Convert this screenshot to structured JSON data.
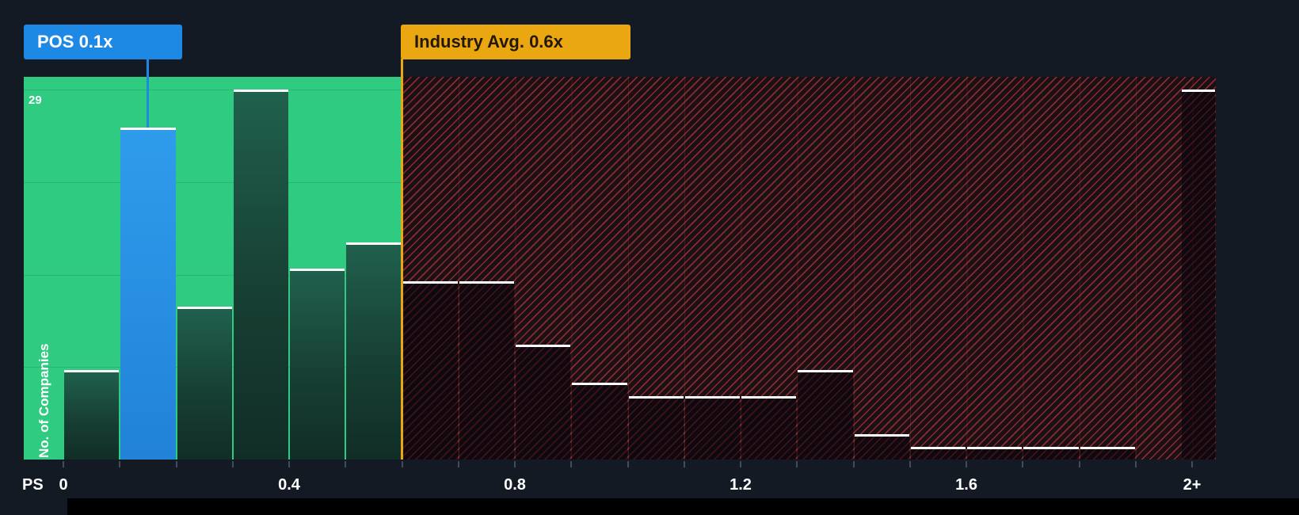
{
  "colors": {
    "background": "#131A24",
    "below_average_zone_green": "#2ECB81",
    "above_average_hatch_red": "#E5443C",
    "company_marker_blue": "#1E88E5",
    "industry_marker_amber": "#EBA712",
    "bar_top_edge_white": "#FFFFFF"
  },
  "chart_data": {
    "type": "bar",
    "xlabel": "PS",
    "ylabel": "No. of Companies",
    "y_axis": {
      "max_label": "29"
    },
    "ymax": 30,
    "axis_max": 2.042,
    "x_ticks": [
      {
        "value": 0.0,
        "label": "0"
      },
      {
        "value": 0.4,
        "label": "0.4"
      },
      {
        "value": 0.8,
        "label": "0.8"
      },
      {
        "value": 1.2,
        "label": "1.2"
      },
      {
        "value": 1.6,
        "label": "1.6"
      },
      {
        "value": 2.0,
        "label": "2+"
      }
    ],
    "bins": [
      {
        "from": 0.0,
        "to": 0.1,
        "count": 7,
        "zone": "below"
      },
      {
        "from": 0.1,
        "to": 0.2,
        "count": 26,
        "zone": "below",
        "highlight": true
      },
      {
        "from": 0.2,
        "to": 0.3,
        "count": 12,
        "zone": "below"
      },
      {
        "from": 0.3,
        "to": 0.4,
        "count": 29,
        "zone": "below"
      },
      {
        "from": 0.4,
        "to": 0.5,
        "count": 15,
        "zone": "below"
      },
      {
        "from": 0.5,
        "to": 0.6,
        "count": 17,
        "zone": "below"
      },
      {
        "from": 0.6,
        "to": 0.7,
        "count": 14,
        "zone": "above"
      },
      {
        "from": 0.7,
        "to": 0.8,
        "count": 14,
        "zone": "above"
      },
      {
        "from": 0.8,
        "to": 0.9,
        "count": 9,
        "zone": "above"
      },
      {
        "from": 0.9,
        "to": 1.0,
        "count": 6,
        "zone": "above"
      },
      {
        "from": 1.0,
        "to": 1.1,
        "count": 5,
        "zone": "above"
      },
      {
        "from": 1.1,
        "to": 1.2,
        "count": 5,
        "zone": "above"
      },
      {
        "from": 1.2,
        "to": 1.3,
        "count": 5,
        "zone": "above"
      },
      {
        "from": 1.3,
        "to": 1.4,
        "count": 7,
        "zone": "above"
      },
      {
        "from": 1.4,
        "to": 1.5,
        "count": 2,
        "zone": "above"
      },
      {
        "from": 1.5,
        "to": 1.6,
        "count": 1,
        "zone": "above"
      },
      {
        "from": 1.6,
        "to": 1.7,
        "count": 1,
        "zone": "above"
      },
      {
        "from": 1.7,
        "to": 1.8,
        "count": 1,
        "zone": "above"
      },
      {
        "from": 1.8,
        "to": 1.9,
        "count": 1,
        "zone": "above"
      },
      {
        "from": 1.9,
        "to": 1.98,
        "count": 0,
        "zone": "above"
      },
      {
        "from": 1.98,
        "to": 2.042,
        "count": 29,
        "zone": "above",
        "label": "2+"
      }
    ],
    "company_marker": {
      "label": "POS 0.1x",
      "value": 0.1,
      "line_position": 0.15
    },
    "industry_marker": {
      "label": "Industry Avg. 0.6x",
      "value": 0.6
    }
  }
}
